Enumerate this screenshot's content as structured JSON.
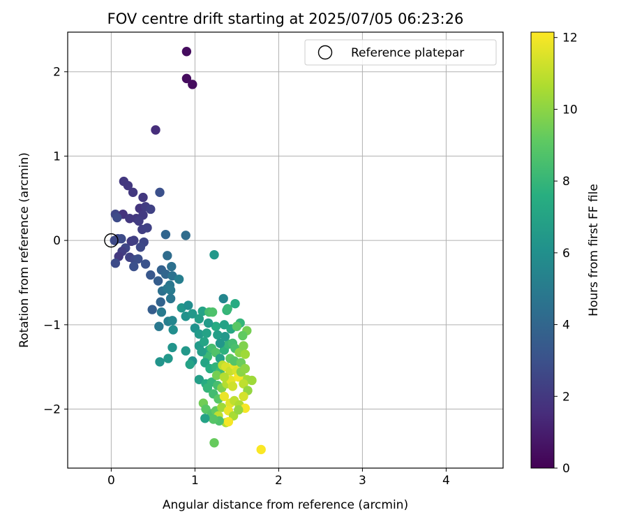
{
  "chart_data": {
    "type": "scatter",
    "title": "FOV centre drift starting at 2025/07/05 06:23:26",
    "xlabel": "Angular distance from reference (arcmin)",
    "ylabel": "Rotation from reference (arcmin)",
    "xlim": [
      -0.52,
      4.68
    ],
    "ylim": [
      -2.7,
      2.47
    ],
    "xticks": [
      0,
      1,
      2,
      3,
      4
    ],
    "yticks": [
      -2,
      -1,
      0,
      1,
      2
    ],
    "grid": true,
    "legend": {
      "position": "top-right",
      "entries": [
        "Reference platepar"
      ]
    },
    "reference_point": {
      "x": 0,
      "y": 0,
      "label": "Reference platepar"
    },
    "colorbar": {
      "label": "Hours from first FF file",
      "min": 0,
      "max": 12.15,
      "ticks": [
        0,
        2,
        4,
        6,
        8,
        10,
        12
      ],
      "colormap": "viridis"
    },
    "points": [
      [
        0.9,
        2.24,
        0.4
      ],
      [
        0.9,
        1.92,
        0.4
      ],
      [
        0.97,
        1.85,
        0.4
      ],
      [
        0.53,
        1.31,
        1.6
      ],
      [
        0.15,
        0.7,
        2.0
      ],
      [
        0.2,
        0.65,
        2.0
      ],
      [
        0.26,
        0.57,
        2.0
      ],
      [
        0.38,
        0.51,
        2.0
      ],
      [
        0.34,
        0.38,
        1.9
      ],
      [
        0.41,
        0.4,
        2.2
      ],
      [
        0.47,
        0.37,
        2.4
      ],
      [
        0.58,
        0.57,
        3.0
      ],
      [
        0.05,
        0.31,
        2.6
      ],
      [
        0.14,
        0.31,
        1.8
      ],
      [
        0.07,
        0.27,
        2.8
      ],
      [
        0.22,
        0.26,
        2.0
      ],
      [
        0.3,
        0.26,
        2.0
      ],
      [
        0.38,
        0.3,
        2.1
      ],
      [
        0.33,
        0.23,
        2.2
      ],
      [
        0.37,
        0.13,
        2.3
      ],
      [
        0.43,
        0.15,
        2.4
      ],
      [
        0.65,
        0.07,
        4.0
      ],
      [
        0.89,
        0.06,
        4.3
      ],
      [
        0.08,
        0.02,
        2.6
      ],
      [
        0.12,
        0.02,
        2.8
      ],
      [
        0.04,
        0.0,
        2.7
      ],
      [
        0.24,
        -0.01,
        2.1
      ],
      [
        0.27,
        0.0,
        2.3
      ],
      [
        0.39,
        -0.02,
        2.6
      ],
      [
        0.35,
        -0.08,
        2.7
      ],
      [
        0.17,
        -0.09,
        2.6
      ],
      [
        0.13,
        -0.13,
        2.2
      ],
      [
        0.09,
        -0.19,
        2.0
      ],
      [
        0.22,
        -0.2,
        2.4
      ],
      [
        0.28,
        -0.23,
        2.7
      ],
      [
        0.32,
        -0.22,
        2.9
      ],
      [
        0.27,
        -0.31,
        3.0
      ],
      [
        0.05,
        -0.27,
        2.8
      ],
      [
        0.41,
        -0.28,
        3.1
      ],
      [
        0.47,
        -0.41,
        3.3
      ],
      [
        0.56,
        -0.48,
        3.6
      ],
      [
        0.6,
        -0.35,
        3.8
      ],
      [
        0.65,
        -0.4,
        4.0
      ],
      [
        0.67,
        -0.18,
        4.3
      ],
      [
        0.72,
        -0.31,
        4.5
      ],
      [
        0.73,
        -0.42,
        4.6
      ],
      [
        0.7,
        -0.53,
        4.8
      ],
      [
        0.61,
        -0.6,
        4.5
      ],
      [
        0.67,
        -0.57,
        4.9
      ],
      [
        0.71,
        -0.59,
        5.0
      ],
      [
        0.81,
        -0.46,
        5.2
      ],
      [
        0.59,
        -0.73,
        3.9
      ],
      [
        0.49,
        -0.82,
        3.6
      ],
      [
        0.71,
        -0.69,
        4.8
      ],
      [
        0.6,
        -0.85,
        5.0
      ],
      [
        0.68,
        -0.96,
        5.2
      ],
      [
        0.57,
        -1.02,
        4.9
      ],
      [
        0.73,
        -0.95,
        5.6
      ],
      [
        0.74,
        -1.06,
        6.0
      ],
      [
        0.84,
        -0.8,
        6.4
      ],
      [
        0.89,
        -0.9,
        6.2
      ],
      [
        0.92,
        -0.77,
        6.0
      ],
      [
        0.97,
        -0.87,
        6.5
      ],
      [
        1.05,
        -0.93,
        6.8
      ],
      [
        1.09,
        -0.84,
        7.0
      ],
      [
        1.17,
        -0.85,
        8.5
      ],
      [
        1.21,
        -0.85,
        8.7
      ],
      [
        1.23,
        -0.17,
        6.5
      ],
      [
        1.34,
        -0.69,
        5.6
      ],
      [
        1.38,
        -0.83,
        8.0
      ],
      [
        1.39,
        -0.81,
        8.1
      ],
      [
        1.48,
        -0.75,
        7.5
      ],
      [
        1.25,
        -1.02,
        7.5
      ],
      [
        1.35,
        -1.0,
        7.0
      ],
      [
        1.43,
        -1.05,
        7.3
      ],
      [
        1.54,
        -0.98,
        8.0
      ],
      [
        1.5,
        -1.02,
        9.0
      ],
      [
        1.62,
        -1.07,
        9.6
      ],
      [
        1.57,
        -1.13,
        9.2
      ],
      [
        1.0,
        -1.04,
        6.2
      ],
      [
        1.05,
        -1.11,
        6.6
      ],
      [
        0.73,
        -1.27,
        6.3
      ],
      [
        0.89,
        -1.31,
        6.5
      ],
      [
        0.97,
        -1.43,
        6.2
      ],
      [
        0.94,
        -1.47,
        7.0
      ],
      [
        0.68,
        -1.4,
        6.5
      ],
      [
        0.58,
        -1.44,
        6.3
      ],
      [
        1.05,
        -1.25,
        6.6
      ],
      [
        1.11,
        -1.2,
        7.1
      ],
      [
        1.17,
        -1.3,
        7.5
      ],
      [
        1.15,
        -1.38,
        8.2
      ],
      [
        1.2,
        -1.28,
        8.5
      ],
      [
        1.25,
        -1.33,
        8.8
      ],
      [
        1.3,
        -1.4,
        7.0
      ],
      [
        1.35,
        -1.3,
        7.8
      ],
      [
        1.4,
        -1.23,
        8.1
      ],
      [
        1.45,
        -1.22,
        8.4
      ],
      [
        1.48,
        -1.28,
        8.6
      ],
      [
        1.53,
        -1.33,
        10.0
      ],
      [
        1.58,
        -1.25,
        9.8
      ],
      [
        1.6,
        -1.35,
        10.4
      ],
      [
        1.12,
        -1.45,
        7.2
      ],
      [
        1.18,
        -1.52,
        7.6
      ],
      [
        1.25,
        -1.5,
        7.9
      ],
      [
        1.3,
        -1.55,
        8.3
      ],
      [
        1.33,
        -1.48,
        11.0
      ],
      [
        1.37,
        -1.5,
        11.5
      ],
      [
        1.42,
        -1.55,
        11.2
      ],
      [
        1.47,
        -1.48,
        11.8
      ],
      [
        1.5,
        -1.55,
        11.5
      ],
      [
        1.55,
        -1.6,
        11.0
      ],
      [
        1.62,
        -1.65,
        10.5
      ],
      [
        1.68,
        -1.66,
        10.4
      ],
      [
        1.05,
        -1.65,
        6.8
      ],
      [
        1.13,
        -1.7,
        7.5
      ],
      [
        1.2,
        -1.68,
        8.0
      ],
      [
        1.27,
        -1.72,
        8.5
      ],
      [
        1.32,
        -1.75,
        9.8
      ],
      [
        1.38,
        -1.7,
        10.8
      ],
      [
        1.43,
        -1.66,
        11.7
      ],
      [
        1.52,
        -1.62,
        12.0
      ],
      [
        1.58,
        -1.7,
        11.0
      ],
      [
        1.63,
        -1.78,
        10.2
      ],
      [
        1.15,
        -1.75,
        8.0
      ],
      [
        1.22,
        -1.82,
        8.4
      ],
      [
        1.28,
        -1.88,
        9.0
      ],
      [
        1.35,
        -1.85,
        11.8
      ],
      [
        1.42,
        -1.93,
        11.6
      ],
      [
        1.47,
        -1.9,
        11.0
      ],
      [
        1.53,
        -1.95,
        10.7
      ],
      [
        1.6,
        -1.99,
        12.0
      ],
      [
        1.58,
        -1.85,
        11.4
      ],
      [
        1.1,
        -1.93,
        9.5
      ],
      [
        1.13,
        -2.0,
        9.0
      ],
      [
        1.2,
        -2.06,
        8.8
      ],
      [
        1.25,
        -2.02,
        9.2
      ],
      [
        1.32,
        -1.98,
        10.4
      ],
      [
        1.4,
        -2.02,
        11.8
      ],
      [
        1.46,
        -2.08,
        10.6
      ],
      [
        1.52,
        -2.01,
        10.2
      ],
      [
        1.28,
        -2.08,
        11.0
      ],
      [
        1.37,
        -2.16,
        10.8
      ],
      [
        1.4,
        -2.15,
        12.0
      ],
      [
        1.29,
        -2.14,
        8.7
      ],
      [
        1.22,
        -2.12,
        8.9
      ],
      [
        1.12,
        -2.11,
        7.0
      ],
      [
        1.23,
        -2.4,
        9.3
      ],
      [
        1.79,
        -2.48,
        12.1
      ],
      [
        1.08,
        -1.32,
        6.8
      ],
      [
        1.14,
        -1.1,
        7.0
      ],
      [
        1.16,
        -0.98,
        6.6
      ],
      [
        1.27,
        -1.12,
        6.8
      ],
      [
        1.3,
        -1.22,
        6.4
      ],
      [
        1.36,
        -1.14,
        6.5
      ],
      [
        1.42,
        -1.4,
        9.2
      ],
      [
        1.47,
        -1.43,
        8.9
      ],
      [
        1.55,
        -1.45,
        9.4
      ],
      [
        1.26,
        -1.6,
        9.6
      ],
      [
        1.35,
        -1.62,
        10.8
      ],
      [
        1.45,
        -1.73,
        11.3
      ],
      [
        1.55,
        -1.56,
        10.0
      ],
      [
        1.6,
        -1.52,
        10.1
      ]
    ]
  }
}
